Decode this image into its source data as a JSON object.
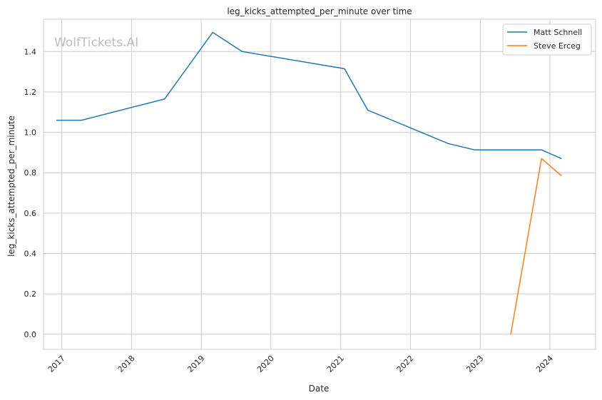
{
  "chart_data": {
    "type": "line",
    "title": "leg_kicks_attempted_per_minute over time",
    "xlabel": "Date",
    "ylabel": "leg_kicks_attempted_per_minute",
    "watermark": "WolfTickets.AI",
    "x_ticks": [
      "2017",
      "2018",
      "2019",
      "2020",
      "2021",
      "2022",
      "2023",
      "2024"
    ],
    "y_ticks": [
      "0.0",
      "0.2",
      "0.4",
      "0.6",
      "0.8",
      "1.0",
      "1.2",
      "1.4"
    ],
    "ylim": [
      -0.075,
      1.56
    ],
    "xlim": [
      "2016-09-27",
      "2024-08-27"
    ],
    "grid": true,
    "legend_position": "top-right",
    "series": [
      {
        "name": "Matt Schnell",
        "color": "#1f77b4",
        "points": [
          {
            "date": "2016-12-03",
            "value": 1.06
          },
          {
            "date": "2017-04-15",
            "value": 1.06
          },
          {
            "date": "2018-06-23",
            "value": 1.165
          },
          {
            "date": "2019-03-02",
            "value": 1.495
          },
          {
            "date": "2019-08-03",
            "value": 1.4
          },
          {
            "date": "2021-01-20",
            "value": 1.315
          },
          {
            "date": "2021-05-22",
            "value": 1.11
          },
          {
            "date": "2022-07-16",
            "value": 0.945
          },
          {
            "date": "2022-12-03",
            "value": 0.913
          },
          {
            "date": "2023-11-18",
            "value": 0.913
          },
          {
            "date": "2024-03-02",
            "value": 0.87
          }
        ]
      },
      {
        "name": "Steve Erceg",
        "color": "#ff7f0e",
        "points": [
          {
            "date": "2023-06-10",
            "value": 0.0
          },
          {
            "date": "2023-11-18",
            "value": 0.87
          },
          {
            "date": "2024-03-02",
            "value": 0.785
          }
        ]
      }
    ]
  }
}
